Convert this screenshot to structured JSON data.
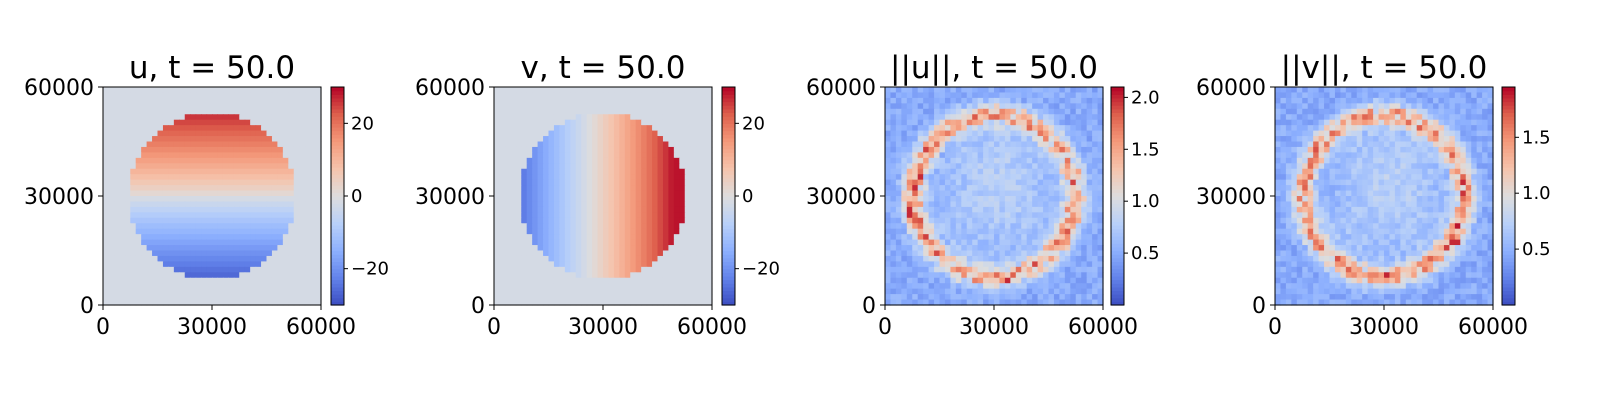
{
  "chart_data": [
    {
      "type": "heatmap",
      "title": "u, t = 50.0",
      "field": "u",
      "kind": "signed",
      "xlim": [
        0,
        60000
      ],
      "ylim": [
        0,
        60000
      ],
      "xticks": [
        "0",
        "30000",
        "60000"
      ],
      "yticks": [
        "0",
        "30000",
        "60000"
      ],
      "colormap": "coolwarm",
      "colorbar": {
        "range": [
          -30,
          30
        ],
        "ticks": [
          -20,
          0,
          20
        ],
        "tick_labels": [
          "−20",
          "0",
          "20"
        ]
      },
      "pattern": "circular region; positive (red) in upper half, negative (blue) in lower half",
      "colors": {
        "low": "#3b4cc0",
        "mid": "#dddddd",
        "high": "#b40426"
      }
    },
    {
      "type": "heatmap",
      "title": "v, t = 50.0",
      "field": "v",
      "kind": "signed",
      "xlim": [
        0,
        60000
      ],
      "ylim": [
        0,
        60000
      ],
      "xticks": [
        "0",
        "30000",
        "60000"
      ],
      "yticks": [
        "0",
        "30000",
        "60000"
      ],
      "colormap": "coolwarm",
      "colorbar": {
        "range": [
          -30,
          30
        ],
        "ticks": [
          -20,
          0,
          20
        ],
        "tick_labels": [
          "−20",
          "0",
          "20"
        ]
      },
      "pattern": "circular region; negative (blue) on left, positive (red) on right",
      "colors": {
        "low": "#3b4cc0",
        "mid": "#dddddd",
        "high": "#b40426"
      }
    },
    {
      "type": "heatmap",
      "title": "||u||, t = 50.0",
      "field": "||u||",
      "kind": "magnitude",
      "xlim": [
        0,
        60000
      ],
      "ylim": [
        0,
        60000
      ],
      "xticks": [
        "0",
        "30000",
        "60000"
      ],
      "yticks": [
        "0",
        "30000",
        "60000"
      ],
      "colormap": "coolwarm",
      "colorbar": {
        "range": [
          0,
          2.1
        ],
        "ticks": [
          0.5,
          1.0,
          1.5,
          2.0
        ],
        "tick_labels": [
          "0.5",
          "1.0",
          "1.5",
          "2.0"
        ]
      },
      "pattern": "mostly low blue with a noisy ring of higher values near the circle boundary",
      "colors": {
        "low": "#3b4cc0",
        "mid": "#dddddd",
        "high": "#b40426"
      }
    },
    {
      "type": "heatmap",
      "title": "||v||, t = 50.0",
      "field": "||v||",
      "kind": "magnitude",
      "xlim": [
        0,
        60000
      ],
      "ylim": [
        0,
        60000
      ],
      "xticks": [
        "0",
        "30000",
        "60000"
      ],
      "yticks": [
        "0",
        "30000",
        "60000"
      ],
      "colormap": "coolwarm",
      "colorbar": {
        "range": [
          0,
          1.95
        ],
        "ticks": [
          0.5,
          1.0,
          1.5
        ],
        "tick_labels": [
          "0.5",
          "1.0",
          "1.5"
        ]
      },
      "pattern": "mostly low blue with a noisy ring of higher values near the circle boundary",
      "colors": {
        "low": "#3b4cc0",
        "mid": "#dddddd",
        "high": "#b40426"
      }
    }
  ]
}
